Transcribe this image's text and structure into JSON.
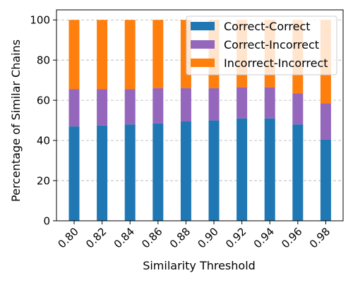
{
  "chart_data": {
    "type": "bar",
    "stacked": true,
    "title": "",
    "xlabel": "Similarity Threshold",
    "ylabel": "Percentage of Similar Chains",
    "categories": [
      "0.80",
      "0.82",
      "0.84",
      "0.86",
      "0.88",
      "0.90",
      "0.92",
      "0.94",
      "0.96",
      "0.98"
    ],
    "ylim": [
      0,
      105
    ],
    "yticks": [
      "0",
      "20",
      "40",
      "60",
      "80",
      "100"
    ],
    "grid": "y-dashed",
    "legend_position": "top-right",
    "series": [
      {
        "name": "Correct-Correct",
        "color": "#1f77b4",
        "values": [
          47,
          47.5,
          48,
          48.5,
          49.5,
          50,
          51,
          51,
          48,
          40.5
        ]
      },
      {
        "name": "Correct-Incorrect",
        "color": "#9467bd",
        "values": [
          18.5,
          18,
          17.5,
          17.5,
          16.5,
          16,
          15.5,
          15.5,
          15.5,
          18
        ]
      },
      {
        "name": "Incorrect-Incorrect",
        "color": "#ff7f0e",
        "values": [
          34.5,
          34.5,
          34.5,
          34,
          34,
          34,
          33.5,
          33.5,
          36.5,
          41.5
        ]
      }
    ]
  }
}
